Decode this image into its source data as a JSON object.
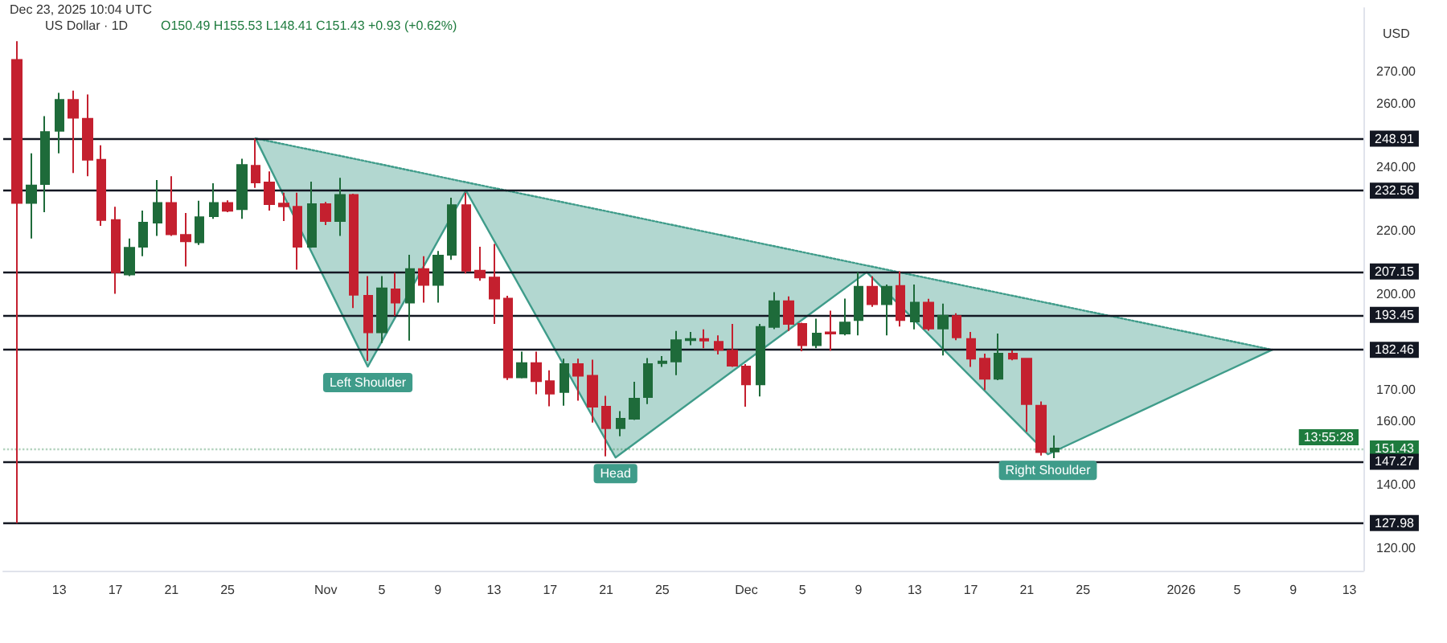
{
  "chart_data": {
    "type": "candlestick",
    "title": "US Dollar · 1D",
    "subtitle": "O150.49 H155.53 L148.41 C151.43 +0.93 (+0.62%)",
    "ylabel": "USD",
    "annotations": [
      "Dec 23, 2025 10:04 UTC",
      {
        "text": "Left Shoulder",
        "x": "2025-11-04",
        "y": 177.2
      },
      {
        "text": "Head",
        "x": "2025-11-21T16:00",
        "y": 148.6
      },
      {
        "text": "Right Shoulder",
        "x": "2025-12-22T12:00",
        "y": 149.6
      },
      "13:55:28"
    ],
    "x": [
      "2025-10-10",
      "2025-10-11",
      "2025-10-12",
      "2025-10-13",
      "2025-10-14",
      "2025-10-15",
      "2025-10-16",
      "2025-10-17",
      "2025-10-18",
      "2025-10-19",
      "2025-10-20",
      "2025-10-21",
      "2025-10-22",
      "2025-10-23",
      "2025-10-24",
      "2025-10-25",
      "2025-10-26",
      "2025-10-27",
      "2025-10-28",
      "2025-10-29",
      "2025-10-30",
      "2025-10-31",
      "2025-11-01",
      "2025-11-02",
      "2025-11-03",
      "2025-11-04",
      "2025-11-05",
      "2025-11-06",
      "2025-11-07",
      "2025-11-08",
      "2025-11-09",
      "2025-11-10",
      "2025-11-11",
      "2025-11-12",
      "2025-11-13",
      "2025-11-14",
      "2025-11-15",
      "2025-11-16",
      "2025-11-17",
      "2025-11-18",
      "2025-11-19",
      "2025-11-20",
      "2025-11-21",
      "2025-11-22",
      "2025-11-23",
      "2025-11-24",
      "2025-11-25",
      "2025-11-26",
      "2025-11-27",
      "2025-11-28",
      "2025-11-29",
      "2025-11-30",
      "2025-12-01",
      "2025-12-02",
      "2025-12-03",
      "2025-12-04",
      "2025-12-05",
      "2025-12-06",
      "2025-12-07",
      "2025-12-08",
      "2025-12-09",
      "2025-12-10",
      "2025-12-11",
      "2025-12-12",
      "2025-12-13",
      "2025-12-14",
      "2025-12-15",
      "2025-12-16",
      "2025-12-17",
      "2025-12-18",
      "2025-12-19",
      "2025-12-20",
      "2025-12-21",
      "2025-12-22",
      "2025-12-23"
    ],
    "ohlc": [
      [
        273.7,
        279.6,
        128.0,
        228.7
      ],
      [
        228.7,
        244.3,
        217.5,
        234.2
      ],
      [
        234.6,
        256.0,
        225.8,
        251.0
      ],
      [
        251.4,
        263.3,
        244.3,
        261.1
      ],
      [
        261.1,
        264.0,
        238.1,
        255.5
      ],
      [
        255.2,
        262.8,
        237.1,
        242.3
      ],
      [
        242.3,
        246.8,
        221.5,
        223.3
      ],
      [
        223.3,
        227.5,
        200.1,
        206.9
      ],
      [
        206.2,
        217.5,
        205.7,
        214.6
      ],
      [
        214.9,
        226.3,
        211.9,
        222.5
      ],
      [
        222.5,
        235.9,
        218.3,
        228.7
      ],
      [
        228.7,
        237.1,
        218.3,
        218.8
      ],
      [
        218.6,
        225.5,
        208.7,
        216.6
      ],
      [
        216.3,
        229.4,
        215.5,
        224.2
      ],
      [
        224.5,
        234.9,
        223.7,
        228.7
      ],
      [
        228.7,
        229.5,
        225.8,
        226.2
      ],
      [
        226.7,
        242.6,
        223.7,
        240.6
      ],
      [
        240.4,
        248.9,
        233.4,
        235.1
      ],
      [
        235.1,
        238.6,
        226.3,
        228.3
      ],
      [
        228.5,
        231.9,
        223.0,
        227.6
      ],
      [
        227.5,
        231.9,
        207.7,
        214.9
      ],
      [
        214.9,
        235.4,
        214.6,
        228.3
      ],
      [
        228.3,
        229.0,
        221.7,
        223.0
      ],
      [
        223.0,
        236.6,
        218.3,
        231.2
      ],
      [
        231.2,
        231.6,
        195.6,
        199.8
      ],
      [
        199.5,
        205.7,
        179.0,
        188.0
      ],
      [
        188.0,
        205.7,
        184.6,
        201.8
      ],
      [
        201.5,
        206.7,
        193.2,
        197.3
      ],
      [
        197.3,
        212.4,
        185.4,
        207.9
      ],
      [
        207.9,
        211.9,
        197.3,
        202.9
      ],
      [
        202.9,
        213.6,
        197.3,
        212.1
      ],
      [
        212.4,
        230.3,
        210.8,
        228.0
      ],
      [
        228.0,
        231.9,
        206.5,
        207.4
      ],
      [
        207.4,
        214.9,
        204.2,
        205.2
      ],
      [
        205.2,
        215.8,
        190.6,
        198.6
      ],
      [
        198.6,
        199.5,
        173.0,
        173.8
      ],
      [
        173.8,
        181.9,
        173.5,
        178.3
      ],
      [
        178.3,
        181.9,
        168.5,
        172.6
      ],
      [
        172.6,
        176.0,
        164.7,
        168.7
      ],
      [
        169.2,
        179.7,
        164.9,
        178.0
      ],
      [
        178.0,
        179.7,
        166.5,
        174.3
      ],
      [
        174.3,
        179.4,
        159.6,
        164.6
      ],
      [
        164.6,
        168.0,
        149.0,
        157.8
      ],
      [
        157.8,
        163.2,
        155.3,
        160.8
      ],
      [
        160.8,
        172.4,
        160.4,
        167.1
      ],
      [
        167.6,
        179.9,
        165.4,
        178.0
      ],
      [
        178.3,
        180.5,
        177.1,
        178.8
      ],
      [
        178.8,
        188.4,
        174.5,
        185.5
      ],
      [
        185.5,
        188.1,
        183.9,
        185.9
      ],
      [
        185.9,
        188.9,
        183.0,
        185.4
      ],
      [
        185.0,
        187.0,
        181.0,
        182.5
      ],
      [
        182.2,
        190.6,
        177.1,
        177.5
      ],
      [
        177.2,
        178.0,
        164.6,
        171.6
      ],
      [
        171.6,
        190.6,
        167.8,
        189.7
      ],
      [
        189.7,
        200.6,
        189.0,
        197.8
      ],
      [
        197.8,
        199.3,
        188.4,
        190.6
      ],
      [
        190.6,
        191.0,
        182.0,
        183.9
      ],
      [
        183.9,
        192.3,
        183.0,
        187.6
      ],
      [
        188.0,
        194.8,
        182.2,
        187.6
      ],
      [
        187.6,
        198.6,
        187.0,
        191.1
      ],
      [
        191.8,
        206.9,
        187.0,
        202.3
      ],
      [
        202.3,
        205.6,
        196.0,
        196.8
      ],
      [
        196.8,
        203.0,
        187.0,
        202.3
      ],
      [
        202.6,
        207.2,
        189.8,
        191.8
      ],
      [
        191.4,
        203.0,
        188.9,
        197.3
      ],
      [
        197.3,
        198.5,
        188.5,
        189.2
      ],
      [
        189.2,
        197.0,
        180.7,
        193.2
      ],
      [
        193.1,
        194.0,
        185.5,
        186.4
      ],
      [
        185.9,
        188.1,
        177.1,
        179.7
      ],
      [
        179.7,
        181.3,
        169.8,
        173.4
      ],
      [
        173.4,
        187.6,
        172.9,
        181.3
      ],
      [
        181.3,
        182.3,
        179.2,
        179.7
      ],
      [
        179.7,
        179.7,
        156.7,
        165.4
      ],
      [
        164.9,
        166.2,
        149.2,
        150.3
      ],
      [
        150.49,
        155.53,
        148.41,
        151.43
      ]
    ],
    "colors": [
      "#c4202f",
      "#1e6b3a",
      "#1e6b3a",
      "#1e6b3a",
      "#c4202f",
      "#c4202f",
      "#c4202f",
      "#c4202f",
      "#1e6b3a",
      "#1e6b3a",
      "#1e6b3a",
      "#c4202f",
      "#c4202f",
      "#1e6b3a",
      "#1e6b3a",
      "#c4202f",
      "#1e6b3a",
      "#c4202f",
      "#c4202f",
      "#c4202f",
      "#c4202f",
      "#1e6b3a",
      "#c4202f",
      "#1e6b3a",
      "#c4202f",
      "#c4202f",
      "#1e6b3a",
      "#c4202f",
      "#1e6b3a",
      "#c4202f",
      "#1e6b3a",
      "#1e6b3a",
      "#c4202f",
      "#c4202f",
      "#c4202f",
      "#c4202f",
      "#1e6b3a",
      "#c4202f",
      "#c4202f",
      "#1e6b3a",
      "#c4202f",
      "#c4202f",
      "#c4202f",
      "#1e6b3a",
      "#1e6b3a",
      "#1e6b3a",
      "#1e6b3a",
      "#1e6b3a",
      "#1e6b3a",
      "#c4202f",
      "#c4202f",
      "#c4202f",
      "#c4202f",
      "#1e6b3a",
      "#1e6b3a",
      "#c4202f",
      "#c4202f",
      "#1e6b3a",
      "#c4202f",
      "#1e6b3a",
      "#1e6b3a",
      "#c4202f",
      "#1e6b3a",
      "#c4202f",
      "#1e6b3a",
      "#c4202f",
      "#1e6b3a",
      "#c4202f",
      "#c4202f",
      "#c4202f",
      "#1e6b3a",
      "#c4202f",
      "#c4202f",
      "#c4202f",
      "#1e6b3a"
    ],
    "series": [
      {
        "type": "line",
        "color": "#3f9c8a",
        "x": [
          "2025-10-27",
          "2025-11-04",
          "2025-11-11",
          "2025-11-21T16:00",
          "2025-12-09T14:00",
          "2025-12-22T12:00",
          "2026-01-07T12:00"
        ],
        "values": [
          249.0,
          177.2,
          232.6,
          148.6,
          206.9,
          149.6,
          182.5
        ]
      },
      {
        "type": "line",
        "color": "#3f9c8a",
        "line_style": "dotted",
        "x": [
          "2025-10-27",
          "2025-11-04",
          "2025-11-11",
          "2025-11-21T16:00",
          "2025-12-09T14:00",
          "2025-12-22T12:00",
          "2026-01-07T12:00"
        ],
        "values": [
          249.0,
          241.7,
          235.2,
          225.5,
          209.0,
          197.2,
          182.5
        ],
        "upper": [
          249.0,
          241.7,
          235.2,
          225.5,
          209.0,
          197.2,
          182.5
        ],
        "lower": [
          249.0,
          177.2,
          232.6,
          148.6,
          206.9,
          149.6,
          182.5
        ]
      }
    ],
    "ref_lines": [
      {
        "axis": "y",
        "value": 248.91,
        "label": "248.91",
        "color": "#131722"
      },
      {
        "axis": "y",
        "value": 232.56,
        "label": "232.56",
        "color": "#131722"
      },
      {
        "axis": "y",
        "value": 207.15,
        "label": "207.15",
        "color": "#131722"
      },
      {
        "axis": "y",
        "value": 193.45,
        "label": "193.45",
        "color": "#131722"
      },
      {
        "axis": "y",
        "value": 182.46,
        "label": "182.46",
        "color": "#131722"
      },
      {
        "axis": "y",
        "value": 151.43,
        "label": "151.43",
        "color": "#1e7b3e",
        "line_style": "dotted"
      },
      {
        "axis": "y",
        "value": 147.27,
        "label": "147.27",
        "color": "#131722"
      },
      {
        "axis": "y",
        "value": 127.98,
        "label": "127.98",
        "color": "#131722"
      }
    ],
    "xlim": [
      "2025-10-09",
      "2026-01-14"
    ],
    "xticks": [
      {
        "value": "2025-10-13",
        "label": "13"
      },
      {
        "value": "2025-10-17",
        "label": "17"
      },
      {
        "value": "2025-10-21",
        "label": "21"
      },
      {
        "value": "2025-10-25",
        "label": "25"
      },
      {
        "value": "2025-11-01",
        "label": "Nov"
      },
      {
        "value": "2025-11-05",
        "label": "5"
      },
      {
        "value": "2025-11-09",
        "label": "9"
      },
      {
        "value": "2025-11-13",
        "label": "13"
      },
      {
        "value": "2025-11-17",
        "label": "17"
      },
      {
        "value": "2025-11-21",
        "label": "21"
      },
      {
        "value": "2025-11-25",
        "label": "25"
      },
      {
        "value": "2025-12-01",
        "label": "Dec"
      },
      {
        "value": "2025-12-05",
        "label": "5"
      },
      {
        "value": "2025-12-09",
        "label": "9"
      },
      {
        "value": "2025-12-13",
        "label": "13"
      },
      {
        "value": "2025-12-17",
        "label": "17"
      },
      {
        "value": "2025-12-21",
        "label": "21"
      },
      {
        "value": "2025-12-25",
        "label": "25"
      },
      {
        "value": "2026-01-01",
        "label": "2026"
      },
      {
        "value": "2026-01-05",
        "label": "5"
      },
      {
        "value": "2026-01-09",
        "label": "9"
      },
      {
        "value": "2026-01-13",
        "label": "13"
      }
    ],
    "ylim": [
      113,
      290
    ],
    "yticks": [
      {
        "value": 120,
        "label": "120.00"
      },
      {
        "value": 140,
        "label": "140.00"
      },
      {
        "value": 160,
        "label": "160.00"
      },
      {
        "value": 170,
        "label": "170.00"
      },
      {
        "value": 200,
        "label": "200.00"
      },
      {
        "value": 220,
        "label": "220.00"
      },
      {
        "value": 240,
        "label": "240.00"
      },
      {
        "value": 260,
        "label": "260.00"
      },
      {
        "value": 270,
        "label": "270.00"
      }
    ]
  }
}
